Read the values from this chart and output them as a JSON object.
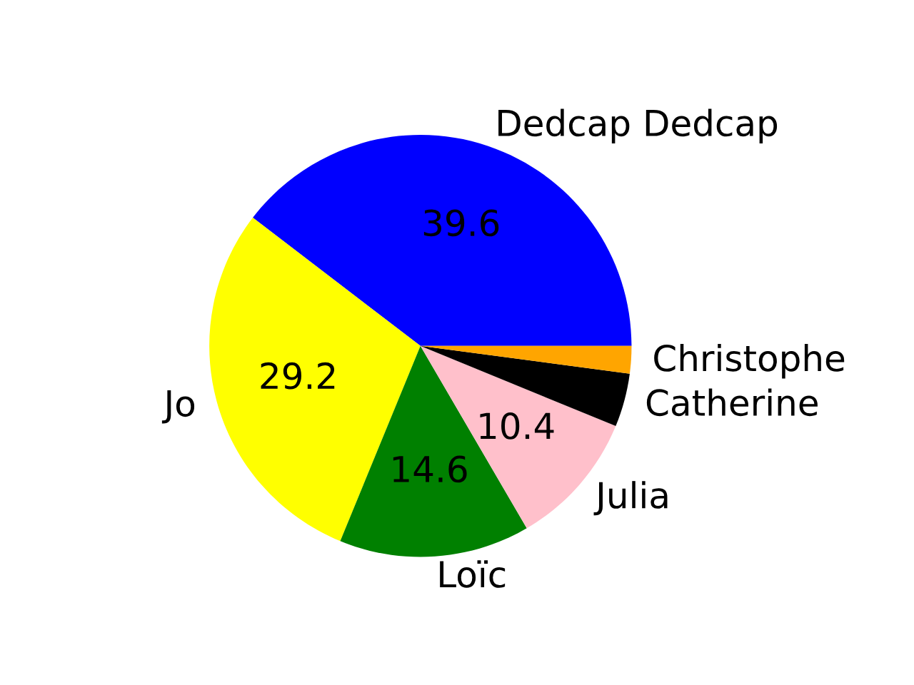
{
  "chart_data": {
    "type": "pie",
    "categories": [
      "Dedcap Dedcap",
      "Jo",
      "Loïc",
      "Julia",
      "Catherine",
      "Christophe"
    ],
    "values": [
      39.6,
      29.2,
      14.6,
      10.4,
      4.1,
      2.1
    ],
    "colors": [
      "#0000ff",
      "#ffff00",
      "#008000",
      "#ffc0cb",
      "#000000",
      "#ffa500"
    ],
    "value_labels": [
      "39.6",
      "29.2",
      "14.6",
      "10.4",
      null,
      null
    ]
  }
}
